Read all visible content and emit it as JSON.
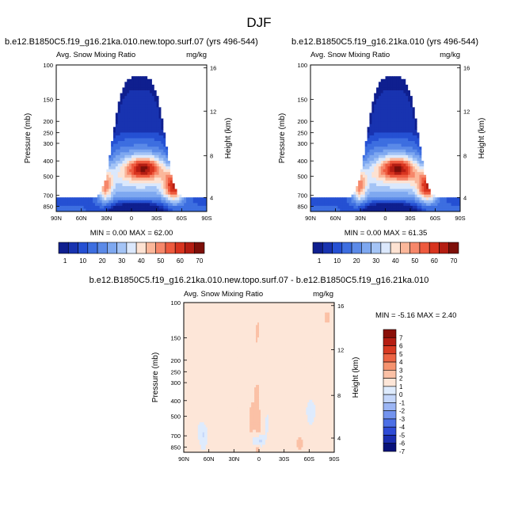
{
  "page": {
    "title": "DJF"
  },
  "colors": {
    "abs_levels": [
      "#0f1f8f",
      "#1833b0",
      "#2550d3",
      "#3d6ee0",
      "#5b8ae8",
      "#7ea8f0",
      "#a4c4f6",
      "#dbe8fc",
      "#fde2d2",
      "#fbb79a",
      "#f6876a",
      "#ee5a3e",
      "#d8341f",
      "#b41d12",
      "#7d0f09"
    ],
    "diff_levels": [
      "#08127a",
      "#1a2db0",
      "#2e4bd6",
      "#4c6fe6",
      "#7393ee",
      "#9bb5f4",
      "#c4d6fa",
      "#deebfd",
      "#fde6d8",
      "#fbc1a6",
      "#f5936f",
      "#ec6444",
      "#d83a22",
      "#b51d12",
      "#8a0f08"
    ]
  },
  "chart_data": [
    {
      "type": "heatmap",
      "panel": "left",
      "title": "b.e12.B1850C5.f19_g16.21ka.010.new.topo.surf.07 (yrs 496-544)",
      "subtitle_left": "Avg. Snow Mixing Ratio",
      "units": "mg/kg",
      "xlabel": "",
      "ylabel": "Pressure (mb)",
      "ylabel_right": "Height (km)",
      "x_ticks": [
        "90N",
        "60N",
        "30N",
        "0",
        "30S",
        "60S",
        "90S"
      ],
      "y_ticks": [
        "100",
        "150",
        "200",
        "250",
        "300",
        "400",
        "500",
        "700",
        "850"
      ],
      "y_right_ticks": [
        "16",
        "12",
        "8",
        "4"
      ],
      "stats": "MIN =  0.00  MAX = 62.00",
      "min": 0.0,
      "max": 62.0
    },
    {
      "type": "heatmap",
      "panel": "right",
      "title": "b.e12.B1850C5.f19_g16.21ka.010 (yrs 496-544)",
      "subtitle_left": "Avg. Snow Mixing Ratio",
      "units": "mg/kg",
      "xlabel": "",
      "ylabel": "Pressure (mb)",
      "ylabel_right": "Height (km)",
      "x_ticks": [
        "90N",
        "60N",
        "30N",
        "0",
        "30S",
        "60S",
        "90S"
      ],
      "y_ticks": [
        "100",
        "150",
        "200",
        "250",
        "300",
        "400",
        "500",
        "700",
        "850"
      ],
      "y_right_ticks": [
        "16",
        "12",
        "8",
        "4"
      ],
      "stats": "MIN =  0.00  MAX = 61.35",
      "min": 0.0,
      "max": 61.35
    },
    {
      "type": "heatmap",
      "panel": "difference",
      "title": "b.e12.B1850C5.f19_g16.21ka.010.new.topo.surf.07 - b.e12.B1850C5.f19_g16.21ka.010",
      "subtitle_left": "Avg. Snow Mixing Ratio",
      "units": "mg/kg",
      "xlabel": "",
      "ylabel": "Pressure (mb)",
      "ylabel_right": "Height (km)",
      "x_ticks": [
        "90N",
        "60N",
        "30N",
        "0",
        "30S",
        "60S",
        "90S"
      ],
      "y_ticks": [
        "100",
        "150",
        "200",
        "250",
        "300",
        "400",
        "500",
        "700",
        "850"
      ],
      "y_right_ticks": [
        "16",
        "12",
        "8",
        "4"
      ],
      "stats": "MIN =  -5.16  MAX =   2.40",
      "min": -5.16,
      "max": 2.4
    }
  ],
  "colorbar_abs": {
    "labels": [
      "1",
      "10",
      "20",
      "30",
      "40",
      "50",
      "60",
      "70"
    ]
  },
  "colorbar_diff": {
    "labels": [
      "7",
      "6",
      "5",
      "4",
      "3",
      "2",
      "1",
      "0",
      "-1",
      "-2",
      "-3",
      "-4",
      "-5",
      "-6",
      "-7"
    ]
  }
}
